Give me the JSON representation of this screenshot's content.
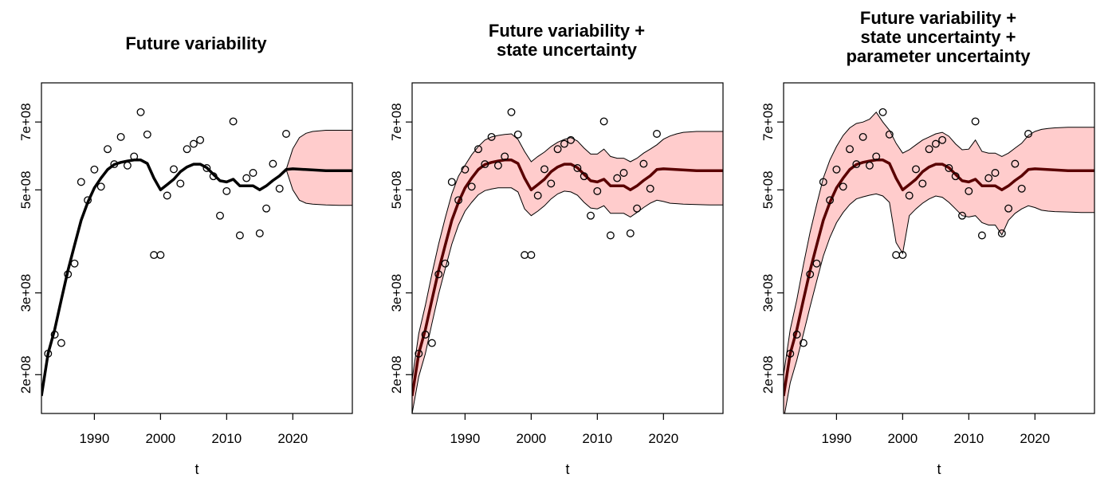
{
  "figure": {
    "xlabel": "t"
  },
  "chart_data": [
    {
      "type": "line",
      "title": [
        "Future variability"
      ],
      "xlabel": "t",
      "ylabel": "",
      "x_ticks": [
        1990,
        2000,
        2010,
        2020
      ],
      "y_ticks": [
        200000000,
        300000000,
        500000000,
        700000000
      ],
      "y_tick_labels": [
        "2e+08",
        "3e+08",
        "5e+08",
        "7e+08"
      ],
      "log_y": true,
      "xlim": [
        1982,
        2029
      ],
      "ylim": [
        165000000,
        850000000
      ],
      "band_color": "#ffcccc",
      "line_color": "#000000",
      "observed": {
        "x": [
          1983,
          1984,
          1985,
          1986,
          1987,
          1988,
          1989,
          1990,
          1991,
          1992,
          1993,
          1994,
          1995,
          1996,
          1997,
          1998,
          1999,
          2000,
          2001,
          2002,
          2003,
          2004,
          2005,
          2006,
          2007,
          2008,
          2009,
          2010,
          2011,
          2012,
          2013,
          2014,
          2015,
          2016,
          2017,
          2018,
          2019
        ],
        "y": [
          222000000,
          244000000,
          234000000,
          329000000,
          347000000,
          520000000,
          475000000,
          553000000,
          508000000,
          612000000,
          568000000,
          650000000,
          564000000,
          590000000,
          735000000,
          658000000,
          362000000,
          362000000,
          486000000,
          554000000,
          516000000,
          612000000,
          628000000,
          640000000,
          557000000,
          535000000,
          440000000,
          497000000,
          702000000,
          399000000,
          530000000,
          544000000,
          403000000,
          456000000,
          569000000,
          503000000,
          660000000
        ]
      },
      "median": {
        "x": [
          1982,
          1983,
          1984,
          1985,
          1986,
          1987,
          1988,
          1989,
          1990,
          1991,
          1992,
          1993,
          1994,
          1995,
          1996,
          1997,
          1998,
          1999,
          2000,
          2001,
          2002,
          2003,
          2004,
          2005,
          2006,
          2007,
          2008,
          2009,
          2010,
          2011,
          2012,
          2013,
          2014,
          2015,
          2016,
          2017,
          2018,
          2019,
          2020,
          2025,
          2029
        ],
        "y": [
          180000000,
          222000000,
          250000000,
          290000000,
          335000000,
          380000000,
          430000000,
          470000000,
          505000000,
          530000000,
          553000000,
          567000000,
          573000000,
          577000000,
          580000000,
          580000000,
          570000000,
          530000000,
          500000000,
          513000000,
          527000000,
          547000000,
          560000000,
          568000000,
          568000000,
          558000000,
          540000000,
          523000000,
          520000000,
          527000000,
          510000000,
          510000000,
          510000000,
          500000000,
          510000000,
          524000000,
          536000000,
          553000000,
          555000000,
          550000000,
          550000000
        ]
      },
      "band": {
        "x": [
          2019,
          2020,
          2021,
          2022,
          2023,
          2025,
          2027,
          2029
        ],
        "upper": [
          553000000,
          613000000,
          648000000,
          662000000,
          668000000,
          672000000,
          672000000,
          672000000
        ],
        "lower": [
          553000000,
          500000000,
          475000000,
          468000000,
          466000000,
          464000000,
          463000000,
          463000000
        ]
      }
    },
    {
      "type": "line",
      "title": [
        "Future variability +",
        "state uncertainty"
      ],
      "xlabel": "t",
      "ylabel": "",
      "x_ticks": [
        1990,
        2000,
        2010,
        2020
      ],
      "y_ticks": [
        200000000,
        300000000,
        500000000,
        700000000
      ],
      "y_tick_labels": [
        "2e+08",
        "3e+08",
        "5e+08",
        "7e+08"
      ],
      "log_y": true,
      "xlim": [
        1982,
        2029
      ],
      "ylim": [
        165000000,
        850000000
      ],
      "band_color": "#ffcccc",
      "line_color": "#5a0000",
      "observed": {
        "x": [
          1983,
          1984,
          1985,
          1986,
          1987,
          1988,
          1989,
          1990,
          1991,
          1992,
          1993,
          1994,
          1995,
          1996,
          1997,
          1998,
          1999,
          2000,
          2001,
          2002,
          2003,
          2004,
          2005,
          2006,
          2007,
          2008,
          2009,
          2010,
          2011,
          2012,
          2013,
          2014,
          2015,
          2016,
          2017,
          2018,
          2019
        ],
        "y": [
          222000000,
          244000000,
          234000000,
          329000000,
          347000000,
          520000000,
          475000000,
          553000000,
          508000000,
          612000000,
          568000000,
          650000000,
          564000000,
          590000000,
          735000000,
          658000000,
          362000000,
          362000000,
          486000000,
          554000000,
          516000000,
          612000000,
          628000000,
          640000000,
          557000000,
          535000000,
          440000000,
          497000000,
          702000000,
          399000000,
          530000000,
          544000000,
          403000000,
          456000000,
          569000000,
          503000000,
          660000000
        ]
      },
      "median": {
        "x": [
          1982,
          1983,
          1984,
          1985,
          1986,
          1987,
          1988,
          1989,
          1990,
          1991,
          1992,
          1993,
          1994,
          1995,
          1996,
          1997,
          1998,
          1999,
          2000,
          2001,
          2002,
          2003,
          2004,
          2005,
          2006,
          2007,
          2008,
          2009,
          2010,
          2011,
          2012,
          2013,
          2014,
          2015,
          2016,
          2017,
          2018,
          2019,
          2020,
          2025,
          2029
        ],
        "y": [
          180000000,
          222000000,
          250000000,
          290000000,
          335000000,
          380000000,
          430000000,
          470000000,
          505000000,
          530000000,
          553000000,
          567000000,
          573000000,
          577000000,
          580000000,
          580000000,
          570000000,
          530000000,
          500000000,
          513000000,
          527000000,
          547000000,
          560000000,
          568000000,
          568000000,
          558000000,
          540000000,
          523000000,
          520000000,
          527000000,
          510000000,
          510000000,
          510000000,
          500000000,
          510000000,
          524000000,
          536000000,
          553000000,
          555000000,
          550000000,
          550000000
        ]
      },
      "band": {
        "x": [
          1982,
          1983,
          1984,
          1985,
          1986,
          1987,
          1988,
          1989,
          1990,
          1991,
          1992,
          1993,
          1994,
          1995,
          1996,
          1997,
          1998,
          1999,
          2000,
          2001,
          2002,
          2003,
          2004,
          2005,
          2006,
          2007,
          2008,
          2009,
          2010,
          2011,
          2012,
          2013,
          2014,
          2015,
          2016,
          2017,
          2018,
          2019,
          2020,
          2021,
          2022,
          2023,
          2025,
          2027,
          2029
        ],
        "upper": [
          195000000,
          245000000,
          282000000,
          330000000,
          382000000,
          435000000,
          490000000,
          535000000,
          565000000,
          595000000,
          620000000,
          640000000,
          650000000,
          655000000,
          658000000,
          660000000,
          642000000,
          605000000,
          575000000,
          590000000,
          603000000,
          620000000,
          633000000,
          642000000,
          648000000,
          637000000,
          615000000,
          597000000,
          597000000,
          612000000,
          590000000,
          585000000,
          585000000,
          575000000,
          585000000,
          600000000,
          612000000,
          625000000,
          643000000,
          653000000,
          660000000,
          665000000,
          668000000,
          668000000,
          668000000
        ],
        "lower": [
          165000000,
          198000000,
          222000000,
          258000000,
          298000000,
          338000000,
          382000000,
          420000000,
          450000000,
          470000000,
          488000000,
          498000000,
          502000000,
          505000000,
          505000000,
          505000000,
          495000000,
          455000000,
          440000000,
          450000000,
          462000000,
          478000000,
          490000000,
          497000000,
          495000000,
          487000000,
          470000000,
          457000000,
          455000000,
          462000000,
          445000000,
          445000000,
          445000000,
          437000000,
          447000000,
          458000000,
          468000000,
          475000000,
          472000000,
          468000000,
          467000000,
          466000000,
          465000000,
          464000000,
          464000000
        ]
      }
    },
    {
      "type": "line",
      "title": [
        "Future variability +",
        "state uncertainty +",
        "parameter uncertainty"
      ],
      "xlabel": "t",
      "ylabel": "",
      "x_ticks": [
        1990,
        2000,
        2010,
        2020
      ],
      "y_ticks": [
        200000000,
        300000000,
        500000000,
        700000000
      ],
      "y_tick_labels": [
        "2e+08",
        "3e+08",
        "5e+08",
        "7e+08"
      ],
      "log_y": true,
      "xlim": [
        1982,
        2029
      ],
      "ylim": [
        165000000,
        850000000
      ],
      "band_color": "#ffcccc",
      "line_color": "#5a0000",
      "observed": {
        "x": [
          1983,
          1984,
          1985,
          1986,
          1987,
          1988,
          1989,
          1990,
          1991,
          1992,
          1993,
          1994,
          1995,
          1996,
          1997,
          1998,
          1999,
          2000,
          2001,
          2002,
          2003,
          2004,
          2005,
          2006,
          2007,
          2008,
          2009,
          2010,
          2011,
          2012,
          2013,
          2014,
          2015,
          2016,
          2017,
          2018,
          2019
        ],
        "y": [
          222000000,
          244000000,
          234000000,
          329000000,
          347000000,
          520000000,
          475000000,
          553000000,
          508000000,
          612000000,
          568000000,
          650000000,
          564000000,
          590000000,
          735000000,
          658000000,
          362000000,
          362000000,
          486000000,
          554000000,
          516000000,
          612000000,
          628000000,
          640000000,
          557000000,
          535000000,
          440000000,
          497000000,
          702000000,
          399000000,
          530000000,
          544000000,
          403000000,
          456000000,
          569000000,
          503000000,
          660000000
        ]
      },
      "median": {
        "x": [
          1982,
          1983,
          1984,
          1985,
          1986,
          1987,
          1988,
          1989,
          1990,
          1991,
          1992,
          1993,
          1994,
          1995,
          1996,
          1997,
          1998,
          1999,
          2000,
          2001,
          2002,
          2003,
          2004,
          2005,
          2006,
          2007,
          2008,
          2009,
          2010,
          2011,
          2012,
          2013,
          2014,
          2015,
          2016,
          2017,
          2018,
          2019,
          2020,
          2025,
          2029
        ],
        "y": [
          180000000,
          222000000,
          250000000,
          290000000,
          335000000,
          380000000,
          430000000,
          470000000,
          505000000,
          530000000,
          553000000,
          567000000,
          573000000,
          577000000,
          580000000,
          580000000,
          570000000,
          530000000,
          500000000,
          513000000,
          527000000,
          547000000,
          560000000,
          568000000,
          568000000,
          558000000,
          540000000,
          523000000,
          520000000,
          527000000,
          510000000,
          510000000,
          510000000,
          500000000,
          510000000,
          524000000,
          536000000,
          553000000,
          555000000,
          550000000,
          550000000
        ]
      },
      "band": {
        "x": [
          1982,
          1983,
          1984,
          1985,
          1986,
          1987,
          1988,
          1989,
          1990,
          1991,
          1992,
          1993,
          1994,
          1995,
          1996,
          1997,
          1998,
          1999,
          2000,
          2001,
          2002,
          2003,
          2004,
          2005,
          2006,
          2007,
          2008,
          2009,
          2010,
          2011,
          2012,
          2013,
          2014,
          2015,
          2016,
          2017,
          2018,
          2019,
          2020,
          2021,
          2022,
          2023,
          2025,
          2027,
          2029
        ],
        "upper": [
          200000000,
          250000000,
          290000000,
          345000000,
          405000000,
          465000000,
          530000000,
          580000000,
          620000000,
          655000000,
          680000000,
          695000000,
          700000000,
          710000000,
          735000000,
          700000000,
          672000000,
          630000000,
          600000000,
          610000000,
          625000000,
          640000000,
          650000000,
          660000000,
          665000000,
          652000000,
          628000000,
          610000000,
          612000000,
          640000000,
          605000000,
          600000000,
          600000000,
          590000000,
          600000000,
          615000000,
          630000000,
          655000000,
          668000000,
          675000000,
          678000000,
          680000000,
          682000000,
          682000000,
          682000000
        ],
        "lower": [
          160000000,
          192000000,
          215000000,
          245000000,
          280000000,
          318000000,
          360000000,
          395000000,
          425000000,
          447000000,
          465000000,
          478000000,
          483000000,
          487000000,
          490000000,
          485000000,
          470000000,
          385000000,
          365000000,
          440000000,
          455000000,
          468000000,
          478000000,
          485000000,
          482000000,
          470000000,
          455000000,
          440000000,
          437000000,
          440000000,
          425000000,
          420000000,
          420000000,
          400000000,
          430000000,
          445000000,
          455000000,
          462000000,
          458000000,
          452000000,
          450000000,
          449000000,
          448000000,
          447000000,
          447000000
        ]
      }
    }
  ]
}
